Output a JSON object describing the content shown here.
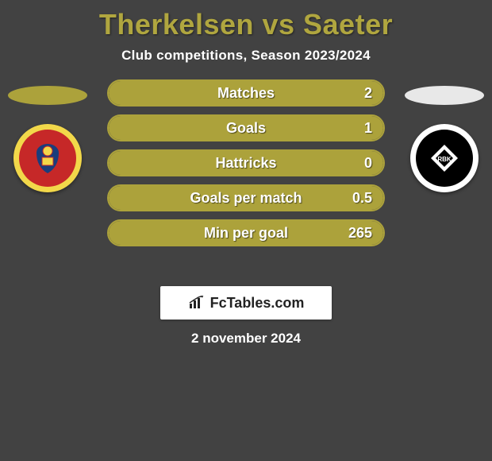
{
  "title": "Therkelsen vs Saeter",
  "subtitle": "Club competitions, Season 2023/2024",
  "date": "2 november 2024",
  "colors": {
    "background": "#424242",
    "title": "#b0a63f",
    "text": "#ffffff",
    "bar_fill": "#aca23b",
    "bar_border": "#aca23b",
    "ellipse_left": "#aca23b",
    "ellipse_right": "#e8e8e8",
    "brand_bg": "#ffffff",
    "brand_text": "#222222"
  },
  "crest_left": {
    "outer": "#f2d84a",
    "inner": "#c62828",
    "accent": "#1a3d7c"
  },
  "crest_right": {
    "outer": "#ffffff",
    "inner": "#000000",
    "accent": "#ffffff"
  },
  "stats": [
    {
      "label": "Matches",
      "value": "2",
      "fill_pct": 100
    },
    {
      "label": "Goals",
      "value": "1",
      "fill_pct": 100
    },
    {
      "label": "Hattricks",
      "value": "0",
      "fill_pct": 100
    },
    {
      "label": "Goals per match",
      "value": "0.5",
      "fill_pct": 100
    },
    {
      "label": "Min per goal",
      "value": "265",
      "fill_pct": 100
    }
  ],
  "brand": "FcTables.com"
}
